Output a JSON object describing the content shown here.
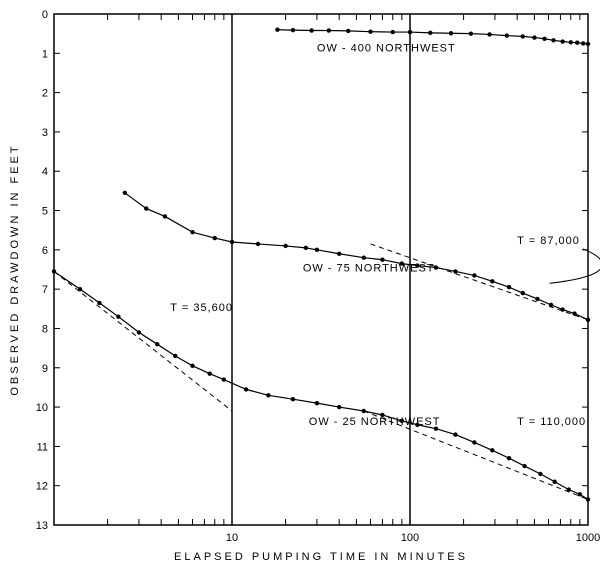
{
  "type": "semilog-scatter-line",
  "background_color": "#ffffff",
  "line_color": "#000000",
  "x_axis": {
    "label": "ELAPSED  PUMPING  TIME  IN  MINUTES",
    "scale": "log",
    "min": 1,
    "max": 1000,
    "decade_ticks": [
      1,
      10,
      100,
      1000
    ],
    "decade_labels": [
      "",
      "10",
      "100",
      "1000"
    ],
    "minor_per_decade": [
      2,
      3,
      4,
      5,
      6,
      7,
      8,
      9
    ]
  },
  "y_axis": {
    "label": "OBSERVED  DRAWDOWN  IN  FEET",
    "scale": "linear",
    "min": 0,
    "max": 13,
    "reversed": true,
    "ticks": [
      0,
      1,
      2,
      3,
      4,
      5,
      6,
      7,
      8,
      9,
      10,
      11,
      12,
      13
    ]
  },
  "series": [
    {
      "name": "OW-400 NORTHWEST",
      "label": "OW - 400  NORTHWEST",
      "label_xy": [
        30,
        0.95
      ],
      "points": [
        [
          18,
          0.4
        ],
        [
          22,
          0.41
        ],
        [
          28,
          0.42
        ],
        [
          35,
          0.42
        ],
        [
          45,
          0.43
        ],
        [
          60,
          0.45
        ],
        [
          80,
          0.46
        ],
        [
          100,
          0.46
        ],
        [
          130,
          0.48
        ],
        [
          170,
          0.49
        ],
        [
          220,
          0.5
        ],
        [
          280,
          0.52
        ],
        [
          350,
          0.55
        ],
        [
          430,
          0.57
        ],
        [
          500,
          0.6
        ],
        [
          570,
          0.63
        ],
        [
          640,
          0.67
        ],
        [
          720,
          0.7
        ],
        [
          800,
          0.72
        ],
        [
          870,
          0.73
        ],
        [
          940,
          0.75
        ],
        [
          1000,
          0.76
        ]
      ],
      "dash_points": []
    },
    {
      "name": "OW-75 NORTHWEST",
      "label": "OW - 75  NORTHWEST",
      "label_xy": [
        25,
        6.55
      ],
      "t_annotation": {
        "text": "T = 87,000",
        "xy": [
          400,
          5.85
        ]
      },
      "points": [
        [
          2.5,
          4.55
        ],
        [
          3.3,
          4.95
        ],
        [
          4.2,
          5.15
        ],
        [
          6.0,
          5.55
        ],
        [
          8.0,
          5.7
        ],
        [
          10,
          5.8
        ],
        [
          14,
          5.85
        ],
        [
          20,
          5.9
        ],
        [
          26,
          5.95
        ],
        [
          30,
          6.0
        ],
        [
          40,
          6.1
        ],
        [
          55,
          6.2
        ],
        [
          70,
          6.25
        ],
        [
          90,
          6.35
        ],
        [
          110,
          6.4
        ],
        [
          140,
          6.45
        ],
        [
          180,
          6.55
        ],
        [
          230,
          6.65
        ],
        [
          290,
          6.8
        ],
        [
          360,
          6.95
        ],
        [
          430,
          7.1
        ],
        [
          520,
          7.25
        ],
        [
          620,
          7.4
        ],
        [
          720,
          7.52
        ],
        [
          840,
          7.62
        ],
        [
          1000,
          7.78
        ]
      ],
      "dash_points": [
        [
          60,
          5.85
        ],
        [
          1000,
          7.78
        ]
      ],
      "callout": {
        "from": [
          460,
          5.9
        ],
        "to": [
          280,
          6.85
        ]
      }
    },
    {
      "name": "OW-25 NORTHWEST",
      "label": "OW - 25  NORTHWEST",
      "label_xy": [
        27,
        10.45
      ],
      "t_annotation": {
        "text": "T = 35,600",
        "xy": [
          4.5,
          7.55
        ]
      },
      "t_annotation2": {
        "text": "T = 110,000",
        "xy": [
          400,
          10.45
        ]
      },
      "points": [
        [
          1.0,
          6.55
        ],
        [
          1.4,
          7.0
        ],
        [
          1.8,
          7.35
        ],
        [
          2.3,
          7.7
        ],
        [
          3.0,
          8.1
        ],
        [
          3.8,
          8.4
        ],
        [
          4.8,
          8.7
        ],
        [
          6.0,
          8.95
        ],
        [
          7.5,
          9.15
        ],
        [
          9.0,
          9.3
        ],
        [
          12,
          9.55
        ],
        [
          16,
          9.7
        ],
        [
          22,
          9.8
        ],
        [
          30,
          9.9
        ],
        [
          40,
          10.0
        ],
        [
          55,
          10.1
        ],
        [
          70,
          10.2
        ],
        [
          90,
          10.35
        ],
        [
          110,
          10.45
        ],
        [
          140,
          10.55
        ],
        [
          180,
          10.7
        ],
        [
          230,
          10.9
        ],
        [
          290,
          11.1
        ],
        [
          360,
          11.3
        ],
        [
          440,
          11.5
        ],
        [
          540,
          11.7
        ],
        [
          650,
          11.9
        ],
        [
          780,
          12.1
        ],
        [
          900,
          12.22
        ],
        [
          1000,
          12.35
        ]
      ],
      "dash_points": [
        [
          1.0,
          6.55
        ],
        [
          10,
          10.1
        ]
      ],
      "dash_points2": [
        [
          55,
          10.1
        ],
        [
          1000,
          12.35
        ]
      ]
    }
  ],
  "marker_size": 2.2
}
